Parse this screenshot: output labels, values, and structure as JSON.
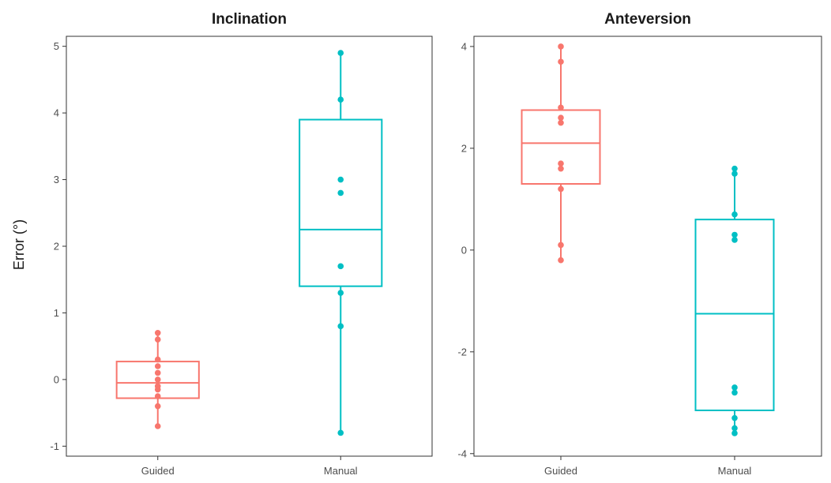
{
  "chart_data": [
    {
      "type": "box",
      "title": "Inclination",
      "xlabel": "",
      "ylabel": "Error (°)",
      "categories": [
        "Guided",
        "Manual"
      ],
      "ylim": [
        -1.15,
        5.15
      ],
      "yticks": [
        -1,
        0,
        1,
        2,
        3,
        4,
        5
      ],
      "grid": false,
      "series": [
        {
          "category": "Guided",
          "color": "#F8766D",
          "box": {
            "q1": -0.28,
            "median": -0.05,
            "q3": 0.27,
            "whisker_low": -0.7,
            "whisker_high": 0.7
          },
          "points": [
            0.7,
            0.6,
            0.3,
            0.2,
            0.1,
            0.0,
            -0.1,
            -0.15,
            -0.25,
            -0.4,
            -0.7
          ]
        },
        {
          "category": "Manual",
          "color": "#00BFC4",
          "box": {
            "q1": 1.4,
            "median": 2.25,
            "q3": 3.9,
            "whisker_low": -0.8,
            "whisker_high": 4.9
          },
          "points": [
            4.9,
            4.2,
            3.0,
            2.8,
            1.7,
            1.3,
            0.8,
            -0.8
          ]
        }
      ]
    },
    {
      "type": "box",
      "title": "Anteversion",
      "xlabel": "",
      "ylabel": "",
      "categories": [
        "Guided",
        "Manual"
      ],
      "ylim": [
        -4.05,
        4.2
      ],
      "yticks": [
        -4,
        -2,
        0,
        2,
        4
      ],
      "grid": false,
      "series": [
        {
          "category": "Guided",
          "color": "#F8766D",
          "box": {
            "q1": 1.3,
            "median": 2.1,
            "q3": 2.75,
            "whisker_low": -0.2,
            "whisker_high": 4.0
          },
          "points": [
            4.0,
            3.7,
            2.8,
            2.6,
            2.5,
            1.7,
            1.6,
            1.2,
            0.1,
            -0.2
          ]
        },
        {
          "category": "Manual",
          "color": "#00BFC4",
          "box": {
            "q1": -3.15,
            "median": -1.25,
            "q3": 0.6,
            "whisker_low": -3.6,
            "whisker_high": 1.6
          },
          "points": [
            1.6,
            1.5,
            0.7,
            0.3,
            0.2,
            -2.7,
            -2.8,
            -3.3,
            -3.5,
            -3.6
          ]
        }
      ]
    }
  ]
}
